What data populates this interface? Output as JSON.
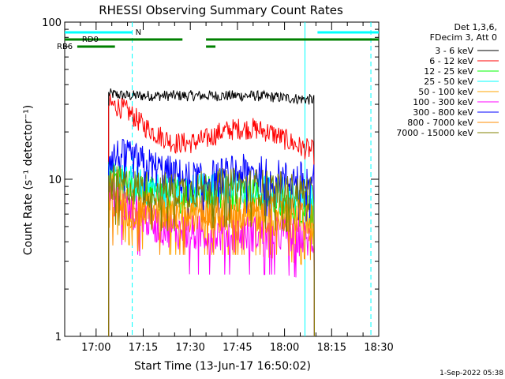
{
  "chart_data": {
    "type": "line",
    "title": "RHESSI Observing Summary Count Rates",
    "xlabel": "Start Time (13-Jun-17 16:50:02)",
    "ylabel": "Count Rate (s⁻¹ detector⁻¹)",
    "y_scale": "log",
    "ylim": [
      1,
      100
    ],
    "y_ticks": [
      {
        "value": 1,
        "label": "1"
      },
      {
        "value": 10,
        "label": "10"
      },
      {
        "value": 100,
        "label": "100"
      }
    ],
    "xlim_minutes": [
      0,
      100
    ],
    "x_ticks": [
      {
        "minute": 10,
        "label": "17:00"
      },
      {
        "minute": 25,
        "label": "17:15"
      },
      {
        "minute": 40,
        "label": "17:30"
      },
      {
        "minute": 55,
        "label": "17:45"
      },
      {
        "minute": 70,
        "label": "18:00"
      },
      {
        "minute": 85,
        "label": "18:15"
      },
      {
        "minute": 100,
        "label": "18:30"
      }
    ],
    "legend_header": [
      "Det 1,3,6,",
      "FDecim 3, Att 0"
    ],
    "legend_position": "right",
    "series": [
      {
        "name": "3 - 6 keV",
        "color": "#000000",
        "x": [
          14,
          20,
          30,
          40,
          50,
          60,
          70,
          79.5
        ],
        "y": [
          35,
          34,
          34,
          34,
          34,
          34,
          33,
          32
        ]
      },
      {
        "name": "6 - 12 keV",
        "color": "#ff0000",
        "x": [
          14,
          17,
          20,
          25,
          30,
          35,
          40,
          45,
          50,
          55,
          60,
          65,
          70,
          75,
          79.5
        ],
        "y": [
          30,
          29,
          27,
          22,
          19,
          17,
          17,
          18,
          20,
          21,
          21,
          20,
          18,
          16,
          15
        ]
      },
      {
        "name": "12 - 25 keV",
        "color": "#00ff00",
        "x": [
          14,
          20,
          25,
          30,
          40,
          50,
          60,
          70,
          79.5
        ],
        "y": [
          10,
          9,
          8.5,
          8,
          8,
          8.5,
          8,
          7,
          6
        ]
      },
      {
        "name": "25 - 50 keV",
        "color": "#00ffff",
        "x": [
          14,
          20,
          25,
          30,
          40,
          50,
          60,
          70,
          79.5
        ],
        "y": [
          10,
          9.5,
          9,
          8.5,
          8.5,
          9,
          8.5,
          8,
          7.5
        ]
      },
      {
        "name": "50 - 100 keV",
        "color": "#ffa500",
        "x": [
          14,
          20,
          30,
          40,
          50,
          60,
          70,
          79.5
        ],
        "y": [
          9,
          7,
          6,
          6,
          6,
          6,
          5.5,
          5
        ]
      },
      {
        "name": "100 - 300 keV",
        "color": "#ff00ff",
        "x": [
          14,
          20,
          30,
          40,
          50,
          60,
          70,
          79.5
        ],
        "y": [
          8,
          6.5,
          5,
          4.5,
          4.5,
          4.5,
          4.5,
          4
        ]
      },
      {
        "name": "300 - 800 keV",
        "color": "#0000ff",
        "x": [
          14,
          17,
          20,
          25,
          30,
          35,
          40,
          45,
          50,
          55,
          60,
          65,
          70,
          75,
          79.5
        ],
        "y": [
          14,
          14,
          13.5,
          12.5,
          11.5,
          10.5,
          10,
          10,
          10.5,
          11,
          11,
          10.5,
          10,
          10,
          9.5
        ]
      },
      {
        "name": "800 - 7000 keV",
        "color": "#ff8c00",
        "x": [
          14,
          20,
          30,
          40,
          50,
          60,
          70,
          79.5
        ],
        "y": [
          7,
          6.5,
          6,
          6,
          6,
          6,
          6,
          5.5
        ]
      },
      {
        "name": "7000 - 15000 keV",
        "color": "#808000",
        "x": [
          14,
          20,
          30,
          40,
          50,
          60,
          70,
          79.5
        ],
        "y": [
          9.5,
          9,
          8.5,
          8.5,
          9,
          9,
          8.5,
          8
        ]
      }
    ],
    "flags": [
      {
        "label": "N",
        "color": "#00ffff",
        "segments": [
          [
            0,
            21.5
          ],
          [
            80.5,
            100
          ]
        ]
      },
      {
        "label": "RD0",
        "color": "#008000",
        "segments": [
          [
            0,
            37.5
          ],
          [
            45,
            100
          ]
        ]
      },
      {
        "label": "RB6",
        "color": "#008000",
        "segments": [
          [
            4,
            16
          ],
          [
            45,
            48
          ]
        ]
      }
    ],
    "vertical_lines": [
      {
        "minute": 21.5,
        "color": "#00ffff",
        "style": "dashed"
      },
      {
        "minute": 76.5,
        "color": "#00ffff",
        "style": "solid"
      },
      {
        "minute": 97.5,
        "color": "#00ffff",
        "style": "dashed"
      }
    ],
    "timestamp": "1-Sep-2022 05:38"
  }
}
